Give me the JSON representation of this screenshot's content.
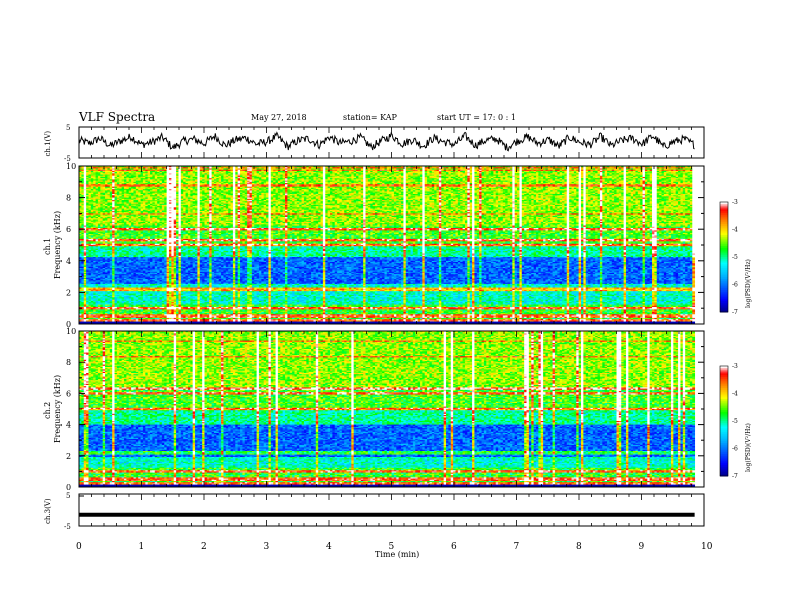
{
  "header": {
    "title": "VLF Spectra",
    "date": "May 27, 2018",
    "station": "station= KAP",
    "start": "start  UT  =   17: 0   : 1"
  },
  "chart_data": [
    {
      "type": "line",
      "id": "ch1_waveform",
      "ylabel": "ch.1(V)",
      "ylim": [
        -5,
        5
      ],
      "yticks": [
        "5",
        "-5"
      ],
      "x_range_min": [
        0,
        9.85
      ],
      "values": [
        0.8,
        -0.3,
        1.5,
        -1.2,
        0.6,
        2.1,
        -0.8,
        0.2,
        1.9,
        -2.0,
        0.5,
        1.2,
        -0.4,
        2.4,
        -1.1,
        0.9,
        1.7,
        -0.6,
        0.3,
        2.2,
        -1.5,
        0.7,
        1.4,
        -0.9,
        2.0,
        -0.2,
        0.4,
        1.8,
        -1.7,
        0.6,
        2.5,
        -0.5,
        1.1,
        -1.3,
        1.6,
        0.2,
        -0.7,
        2.3,
        -1.0,
        0.8,
        1.3,
        -1.8,
        0.5,
        2.0,
        -0.3,
        1.0,
        -1.4,
        1.9,
        0.1,
        -0.8,
        2.1,
        -1.2,
        0.7,
        1.5,
        -0.5,
        2.4,
        -1.6,
        0.3,
        1.2,
        -0.9
      ]
    },
    {
      "type": "heatmap",
      "id": "ch1_spectrogram",
      "ylabel_channel": "ch.1",
      "ylabel": "Frequency  (kHz)",
      "xlim": [
        0,
        10
      ],
      "ylim": [
        0,
        10
      ],
      "yticks": [
        "0",
        "2",
        "4",
        "6",
        "8",
        "10"
      ],
      "colorbar_label": "log(PSD)(V²/Hz)",
      "colorbar_range": [
        -7,
        -3
      ],
      "colorbar_ticks": [
        "-3",
        "-4",
        "-5",
        "-6",
        "-7"
      ],
      "strong_lines_khz": [
        0.2,
        0.5,
        1.0,
        2.2,
        5.0,
        5.3,
        6.0
      ],
      "weak_band_khz": [
        2.5,
        4.2
      ]
    },
    {
      "type": "heatmap",
      "id": "ch2_spectrogram",
      "ylabel_channel": "ch.2",
      "ylabel": "Frequency  (kHz)",
      "xlim": [
        0,
        10
      ],
      "ylim": [
        0,
        10
      ],
      "yticks": [
        "0",
        "2",
        "4",
        "6",
        "8",
        "10"
      ],
      "colorbar_label": "log(PSD)(V²/Hz)",
      "colorbar_range": [
        -7,
        -3
      ],
      "colorbar_ticks": [
        "-3",
        "-4",
        "-5",
        "-6",
        "-7"
      ],
      "strong_lines_khz": [
        0.2,
        0.5,
        1.0,
        2.2,
        5.0,
        6.0,
        6.3
      ],
      "weak_band_khz": [
        1.9,
        4.0
      ]
    },
    {
      "type": "line",
      "id": "ch3_waveform",
      "ylabel": "ch.3(V)",
      "ylim": [
        -5,
        5
      ],
      "yticks": [
        "5",
        "-5"
      ],
      "constant_value": -1.5,
      "x_range_min": [
        0,
        9.85
      ]
    }
  ],
  "x_axis": {
    "label": "Time  (min)",
    "ticks": [
      "0",
      "1",
      "2",
      "3",
      "4",
      "5",
      "6",
      "7",
      "8",
      "9",
      "10"
    ]
  },
  "colors": {
    "waveform": "#000000",
    "colormap": [
      "#000080",
      "#0000ff",
      "#00aaff",
      "#00ffff",
      "#00ff00",
      "#ffff00",
      "#ff8000",
      "#ff0000",
      "#ffffff"
    ]
  }
}
